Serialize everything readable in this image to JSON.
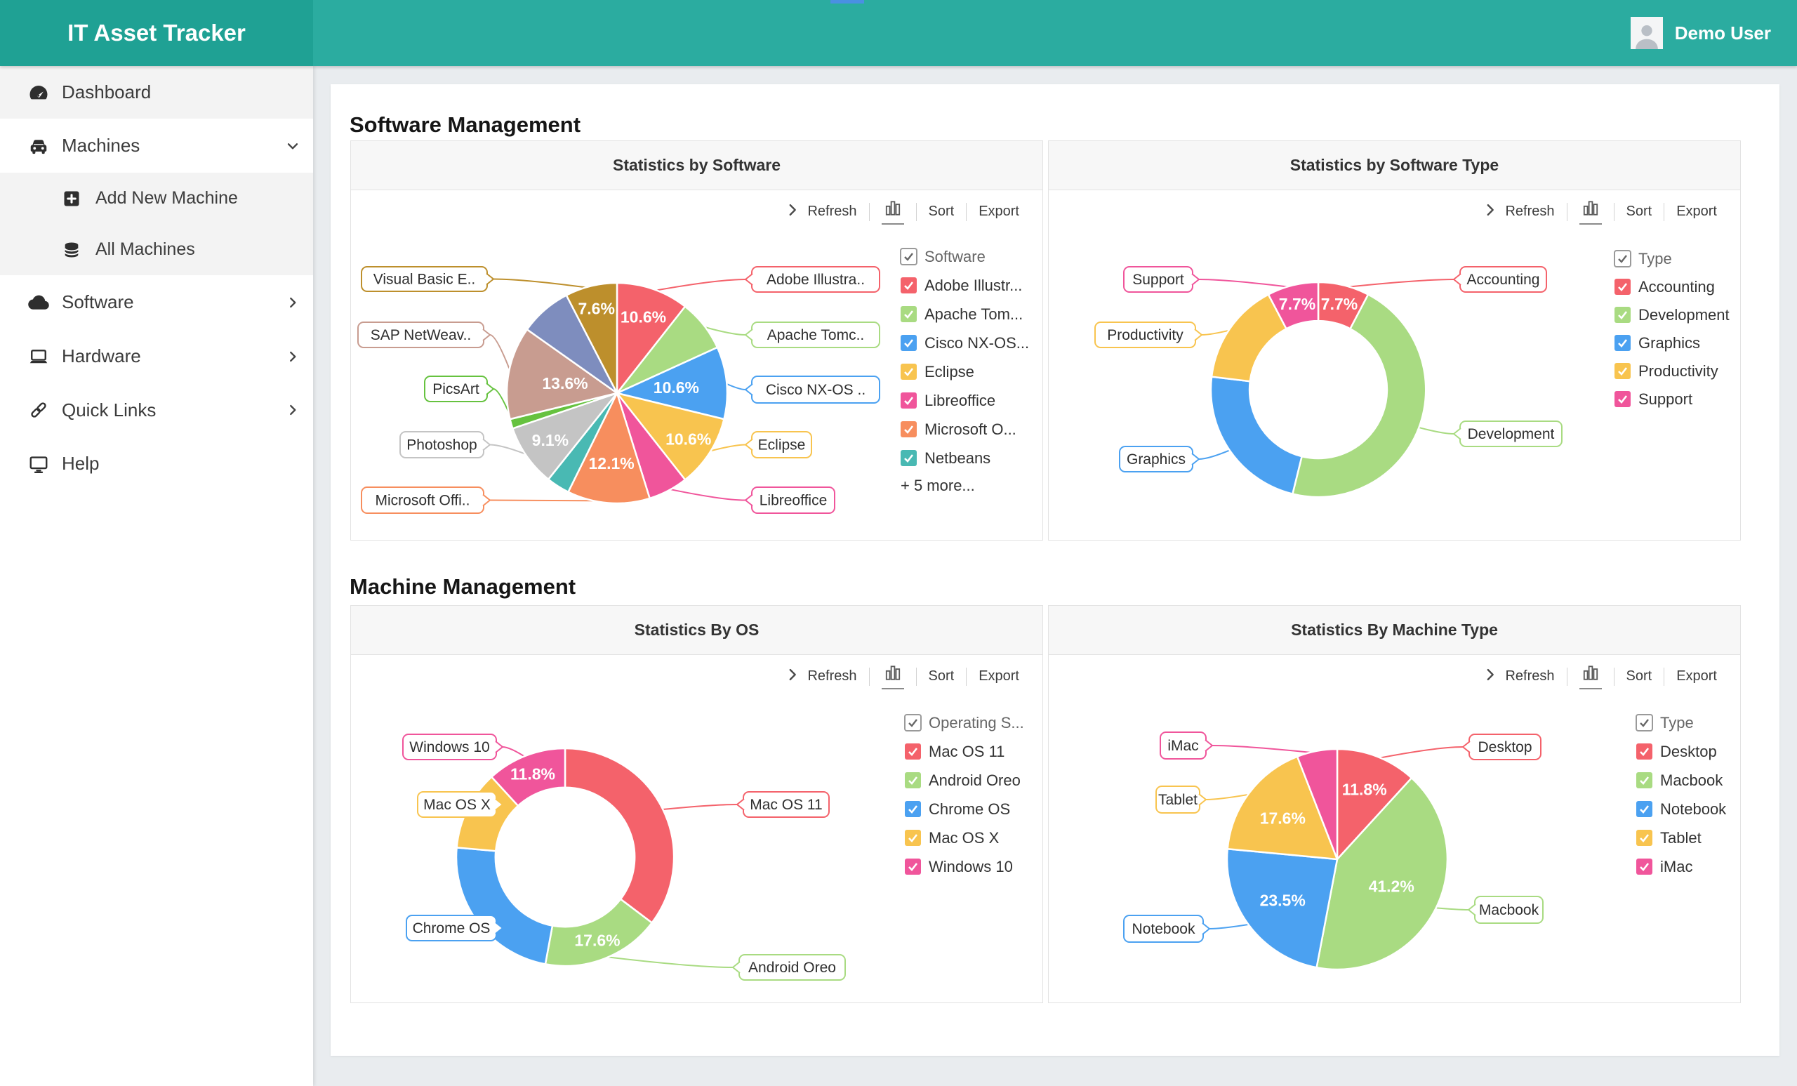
{
  "header": {
    "app_title": "IT Asset Tracker",
    "user_name": "Demo User",
    "accent_color": "#2BACA0",
    "notch_color": "#4A90E2"
  },
  "sidebar": {
    "items": [
      {
        "label": "Dashboard",
        "icon": "dashboard-gauge-icon",
        "active": true
      },
      {
        "label": "Machines",
        "icon": "car-icon",
        "state": "expanded"
      },
      {
        "label": "Add New Machine",
        "icon": "add-square-icon",
        "indent": true
      },
      {
        "label": "All Machines",
        "icon": "database-icon",
        "indent": true
      },
      {
        "label": "Software",
        "icon": "cloud-icon",
        "state": "collapsed"
      },
      {
        "label": "Hardware",
        "icon": "laptop-icon",
        "state": "collapsed"
      },
      {
        "label": "Quick Links",
        "icon": "link-icon",
        "state": "collapsed"
      },
      {
        "label": "Help",
        "icon": "monitor-icon"
      }
    ]
  },
  "toolbar": {
    "refresh": "Refresh",
    "sort": "Sort",
    "export": "Export"
  },
  "sections": [
    {
      "title": "Software Management"
    },
    {
      "title": "Machine Management"
    }
  ],
  "chart_data": [
    {
      "panel_title": "Statistics by Software",
      "type": "pie",
      "legend_title": "Software",
      "legend_more": "+ 5 more...",
      "slices": [
        {
          "label": "Adobe Illustra..",
          "legend": "Adobe Illustr...",
          "value": 10.6,
          "pct_label": "10.6%",
          "color": "#F4626B"
        },
        {
          "label": "Apache Tomc..",
          "legend": "Apache Tom...",
          "value": 7.6,
          "pct_label": null,
          "color": "#A9DB82"
        },
        {
          "label": "Cisco NX-OS ..",
          "legend": "Cisco NX-OS...",
          "value": 10.6,
          "pct_label": "10.6%",
          "color": "#4BA1F1"
        },
        {
          "label": "Eclipse",
          "legend": "Eclipse",
          "value": 10.6,
          "pct_label": "10.6%",
          "color": "#F8C44F"
        },
        {
          "label": "Libreoffice",
          "legend": "Libreoffice",
          "value": 5.8,
          "pct_label": null,
          "color": "#F0559B"
        },
        {
          "label": "Microsoft Offi..",
          "legend": "Microsoft O...",
          "value": 12.1,
          "pct_label": "12.1%",
          "color": "#F78E5E"
        },
        {
          "label": null,
          "legend": "Netbeans",
          "value": 3.4,
          "pct_label": null,
          "color": "#49B9B3"
        },
        {
          "label": "Photoshop",
          "legend": null,
          "value": 9.1,
          "pct_label": "9.1%",
          "color": "#C4C4C4"
        },
        {
          "label": "PicsArt",
          "legend": null,
          "value": 1.4,
          "pct_label": null,
          "color": "#66C23F"
        },
        {
          "label": "SAP NetWeav..",
          "legend": null,
          "value": 13.6,
          "pct_label": "13.6%",
          "color": "#C89C90"
        },
        {
          "label": null,
          "legend": null,
          "value": 7.6,
          "pct_label": null,
          "color": "#7E8DBE"
        },
        {
          "label": "Visual Basic E..",
          "legend": null,
          "value": 7.6,
          "pct_label": "7.6%",
          "color": "#BD8F2C"
        }
      ]
    },
    {
      "panel_title": "Statistics by Software Type",
      "type": "donut",
      "legend_title": "Type",
      "slices": [
        {
          "label": "Accounting",
          "legend": "Accounting",
          "value": 7.7,
          "pct_label": "7.7%",
          "color": "#F4626B"
        },
        {
          "label": "Development",
          "legend": "Development",
          "value": 46.2,
          "pct_label": null,
          "color": "#A9DB82"
        },
        {
          "label": "Graphics",
          "legend": "Graphics",
          "value": 23.1,
          "pct_label": null,
          "color": "#4BA1F1"
        },
        {
          "label": "Productivity",
          "legend": "Productivity",
          "value": 15.4,
          "pct_label": null,
          "color": "#F8C44F"
        },
        {
          "label": "Support",
          "legend": "Support",
          "value": 7.7,
          "pct_label": "7.7%",
          "color": "#F0559B"
        }
      ]
    },
    {
      "panel_title": "Statistics By OS",
      "type": "donut",
      "legend_title": "Operating S...",
      "slices": [
        {
          "label": "Mac OS 11",
          "legend": "Mac OS 11",
          "value": 35.3,
          "pct_label": null,
          "color": "#F4626B"
        },
        {
          "label": "Android Oreo",
          "legend": "Android Oreo",
          "value": 17.6,
          "pct_label": "17.6%",
          "color": "#A9DB82"
        },
        {
          "label": "Chrome OS",
          "legend": "Chrome OS",
          "value": 23.5,
          "pct_label": null,
          "color": "#4BA1F1"
        },
        {
          "label": "Mac OS X",
          "legend": "Mac OS X",
          "value": 11.8,
          "pct_label": null,
          "color": "#F8C44F"
        },
        {
          "label": "Windows 10",
          "legend": "Windows 10",
          "value": 11.8,
          "pct_label": "11.8%",
          "color": "#F0559B"
        }
      ]
    },
    {
      "panel_title": "Statistics By Machine Type",
      "type": "pie",
      "legend_title": "Type",
      "slices": [
        {
          "label": "Desktop",
          "legend": "Desktop",
          "value": 11.8,
          "pct_label": "11.8%",
          "color": "#F4626B"
        },
        {
          "label": "Macbook",
          "legend": "Macbook",
          "value": 41.2,
          "pct_label": "41.2%",
          "color": "#A9DB82"
        },
        {
          "label": "Notebook",
          "legend": "Notebook",
          "value": 23.5,
          "pct_label": "23.5%",
          "color": "#4BA1F1"
        },
        {
          "label": "Tablet",
          "legend": "Tablet",
          "value": 17.6,
          "pct_label": "17.6%",
          "color": "#F8C44F"
        },
        {
          "label": "iMac",
          "legend": "iMac",
          "value": 5.9,
          "pct_label": null,
          "color": "#F0559B"
        }
      ]
    }
  ]
}
